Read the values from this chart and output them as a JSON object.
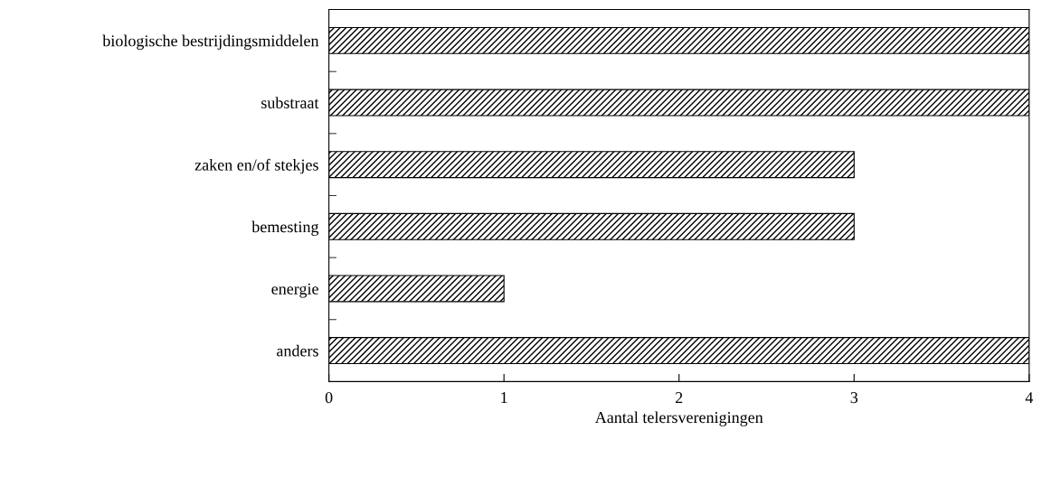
{
  "chart_data": {
    "type": "bar",
    "orientation": "horizontal",
    "xlabel": "Aantal telersverenigingen",
    "categories": [
      "biologische bestrijdingsmiddelen",
      "substraat",
      "zaken en/of stekjes",
      "bemesting",
      "energie",
      "anders"
    ],
    "values": [
      4,
      4,
      3,
      3,
      1,
      4
    ],
    "color": "#000000",
    "xlim": [
      0,
      4
    ],
    "xticks": [
      0,
      1,
      2,
      3,
      4
    ],
    "grid": false,
    "legend": false
  }
}
